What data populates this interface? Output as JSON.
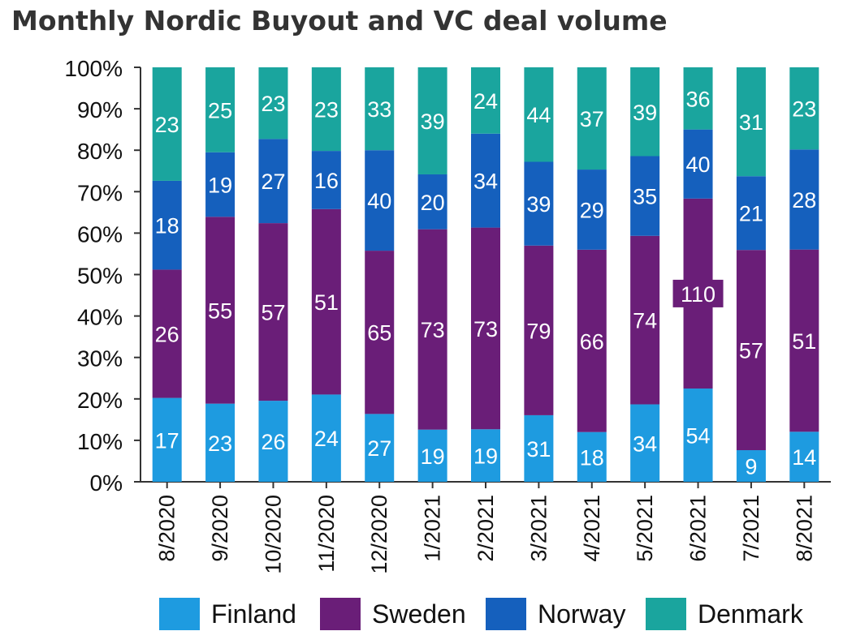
{
  "chart_data": {
    "type": "bar",
    "stacked": true,
    "normalized": true,
    "title": "Monthly Nordic Buyout and VC deal volume",
    "xlabel": "",
    "ylabel": "",
    "ylim": [
      0,
      100
    ],
    "yticks": [
      "0%",
      "10%",
      "20%",
      "30%",
      "40%",
      "50%",
      "60%",
      "70%",
      "80%",
      "90%",
      "100%"
    ],
    "categories": [
      "8/2020",
      "9/2020",
      "10/2020",
      "11/2020",
      "12/2020",
      "1/2021",
      "2/2021",
      "3/2021",
      "4/2021",
      "5/2021",
      "6/2021",
      "7/2021",
      "8/2021"
    ],
    "series": [
      {
        "name": "Finland",
        "color": "#1e9be0",
        "values": [
          17,
          23,
          26,
          24,
          27,
          19,
          19,
          31,
          18,
          34,
          54,
          9,
          14
        ]
      },
      {
        "name": "Sweden",
        "color": "#6a1e78",
        "values": [
          26,
          55,
          57,
          51,
          65,
          73,
          73,
          79,
          66,
          74,
          110,
          57,
          51
        ]
      },
      {
        "name": "Norway",
        "color": "#1560bd",
        "values": [
          18,
          19,
          27,
          16,
          40,
          20,
          34,
          39,
          29,
          35,
          40,
          21,
          28
        ]
      },
      {
        "name": "Denmark",
        "color": "#1aa59e",
        "values": [
          23,
          25,
          23,
          23,
          33,
          39,
          24,
          44,
          37,
          39,
          36,
          31,
          23
        ]
      }
    ],
    "legend_position": "bottom",
    "grid": false
  }
}
